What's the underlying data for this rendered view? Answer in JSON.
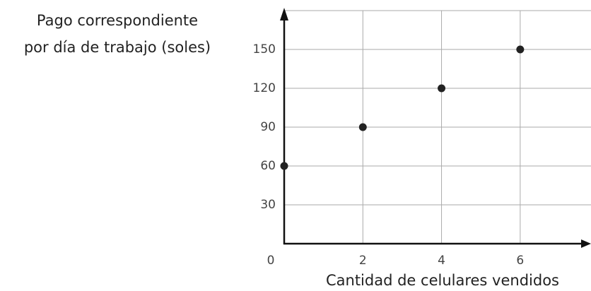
{
  "chart_data": {
    "type": "scatter",
    "ylabel": [
      "Pago correspondiente",
      "por día de trabajo (soles)"
    ],
    "xlabel": "Cantidad de celulares vendidos",
    "x": [
      0,
      2,
      4,
      6
    ],
    "values": [
      60,
      90,
      120,
      150
    ],
    "color": "#222222",
    "xlim": [
      0,
      7.8
    ],
    "ylim": [
      0,
      180
    ],
    "xticks": [
      0,
      2,
      4,
      6
    ],
    "yticks": [
      30,
      60,
      90,
      120,
      150
    ],
    "grid": true
  }
}
